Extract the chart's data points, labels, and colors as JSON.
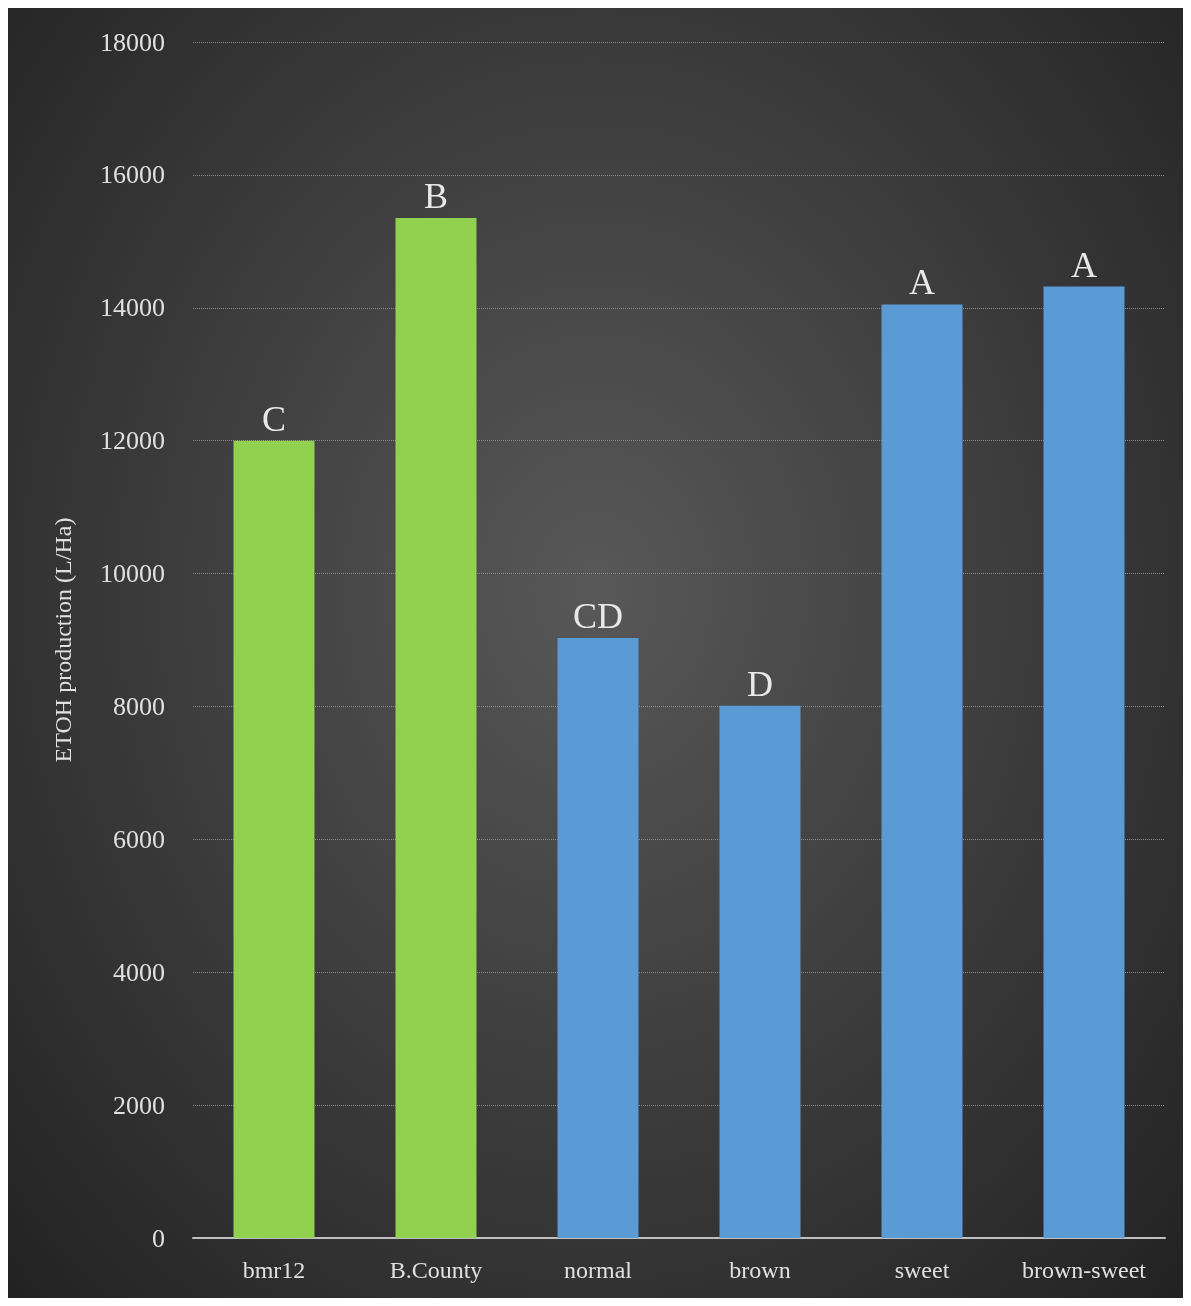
{
  "chart_data": {
    "type": "bar",
    "ylabel": "ETOH production (L/Ha)",
    "categories": [
      "bmr12",
      "B.County",
      "normal",
      "brown",
      "sweet",
      "brown-sweet"
    ],
    "values": [
      12000,
      15350,
      9030,
      8010,
      14050,
      14320
    ],
    "colors": [
      "#92d050",
      "#92d050",
      "#5b9bd5",
      "#5b9bd5",
      "#5b9bd5",
      "#5b9bd5"
    ],
    "ylim": [
      0,
      18000
    ],
    "yticks": [
      0,
      2000,
      4000,
      6000,
      8000,
      10000,
      12000,
      14000,
      16000,
      18000
    ],
    "grid": "y",
    "annotations": [
      {
        "text": "C",
        "x": "bmr12",
        "y": 12000
      },
      {
        "text": "B",
        "x": "B.County",
        "y": 15350
      },
      {
        "text": "CD",
        "x": "normal",
        "y": 9030
      },
      {
        "text": "D",
        "x": "brown",
        "y": 8010
      },
      {
        "text": "A",
        "x": "sweet",
        "y": 14050
      },
      {
        "text": "A",
        "x": "brown-sweet",
        "y": 14320
      }
    ]
  }
}
